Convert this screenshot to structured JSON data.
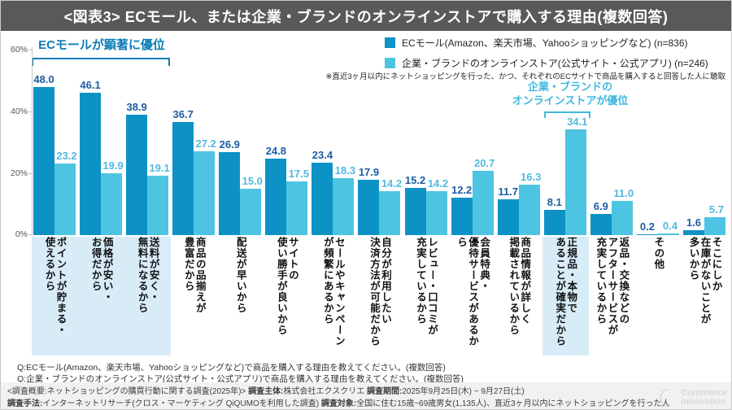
{
  "title": "<図表3> ECモール、または企業・ブランドのオンラインストアで購入する理由(複数回答)",
  "legend": {
    "items": [
      {
        "label": "ECモール(Amazon、楽天市場、Yahooショッピングなど) (n=836)"
      },
      {
        "label": "企業・ブランドのオンラインストア(公式サイト・公式アプリ) (n=246)"
      }
    ],
    "note": "※直近3ヶ月以内にネットショッピングを行った、かつ、それぞれのECサイトで商品を購入すると回答した人に聴取"
  },
  "annotations": {
    "left": "ECモールが顕著に優位",
    "right_line1": "企業・ブランドの",
    "right_line2": "オンラインストアが優位"
  },
  "chart_data": {
    "type": "bar",
    "title": "<図表3> ECモール、または企業・ブランドのオンラインストアで購入する理由(複数回答)",
    "ylabel": "",
    "ylim": [
      0,
      60
    ],
    "y_ticks": [
      "60%",
      "40%",
      "20%",
      "0%"
    ],
    "grid": false,
    "legend_position": "top-right",
    "categories": [
      "ポイントが貯まる・\n使えるから",
      "価格が安い・\nお得だから",
      "送料が安く・\n無料になるから",
      "商品の品揃えが\n豊富だから",
      "配送が早いから",
      "サイトの\n使い勝手が良いから",
      "セールやキャンペーン\nが頻繁にあるから",
      "自分が利用したい\n決済方法が可能だから",
      "レビュー・口コミが\n充実しているから",
      "会員特典・\n優待サービスがあるから",
      "商品情報が詳しく\n掲載されているから",
      "正規品・本物で\nあることが確実だから",
      "返品・交換などの\nアフターサービスが\n充実しているから",
      "その他",
      "そこにしか\n在庫がないことが\n多いから"
    ],
    "series": [
      {
        "name": "ECモール(Amazon、楽天市場、Yahooショッピングなど)",
        "n": 836,
        "color": "#0d92c6",
        "values": [
          48.0,
          46.1,
          38.9,
          36.7,
          26.9,
          24.8,
          23.4,
          17.9,
          15.2,
          12.2,
          11.7,
          8.1,
          6.9,
          0.2,
          1.6
        ]
      },
      {
        "name": "企業・ブランドのオンラインストア(公式サイト・公式アプリ)",
        "n": 246,
        "color": "#4ec4e3",
        "values": [
          23.2,
          19.9,
          19.1,
          27.2,
          15.0,
          17.5,
          18.3,
          14.2,
          14.2,
          20.7,
          16.3,
          34.1,
          11.0,
          0.4,
          5.7
        ]
      }
    ],
    "highlighted_categories": [
      0,
      1,
      2,
      11
    ]
  },
  "questions": [
    "Q:ECモール(Amazon、楽天市場、Yahooショッピングなど)で商品を購入する理由を教えてください。(複数回答)",
    "Q:企業・ブランドのオンラインストア(公式サイト・公式アプリ)で商品を購入する理由を教えてください。(複数回答)"
  ],
  "footer": {
    "line1": [
      {
        "t": "<調査概要:ネットショッピングの購買行動に関する調査(2025年)> ",
        "b": false
      },
      {
        "t": "調査主体:",
        "b": true
      },
      {
        "t": "株式会社エクスクリエ ",
        "b": false
      },
      {
        "t": "調査期間:",
        "b": true
      },
      {
        "t": "2025年9月25日(木) ~ 9月27日(土)",
        "b": false
      }
    ],
    "line2": [
      {
        "t": "調査手法:",
        "b": true
      },
      {
        "t": "インターネットリサーチ(クロス・マーケティング QiQUMOを利用した調査) ",
        "b": false
      },
      {
        "t": "調査対象:",
        "b": true
      },
      {
        "t": "全国に住む15歳~69歳男女(1,135人)、直近3ヶ月以内にネットショッピングを行った人",
        "b": false
      }
    ]
  },
  "watermark": {
    "line1": "Commerce",
    "line2": "innovation"
  },
  "colors": {
    "header_bg": "#595959",
    "footer_bg": "#f1f1f1",
    "value1": "#1d5ca3",
    "value2": "#53b9df",
    "annotation_left": "#0a7cb5",
    "annotation_right": "#41b8df",
    "highlight": "#d8ecf8"
  }
}
